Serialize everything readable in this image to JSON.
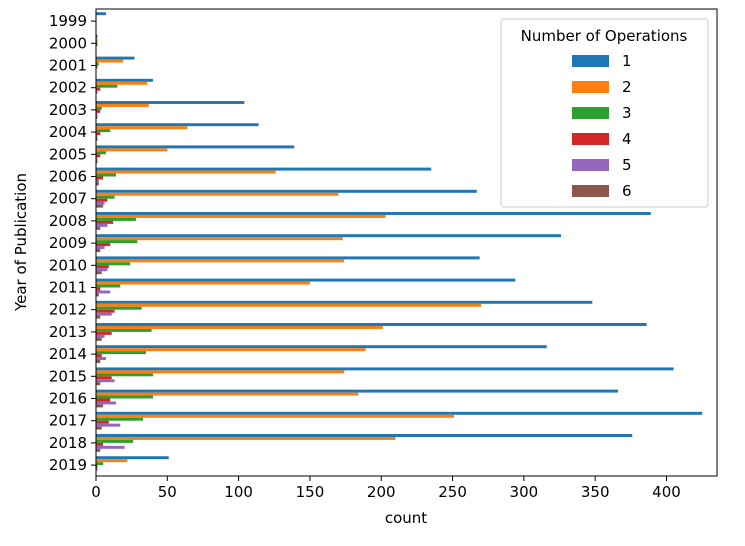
{
  "chart_data": {
    "type": "bar",
    "orientation": "horizontal",
    "title": "",
    "xlabel": "count",
    "ylabel": "Year of Publication",
    "xlim": [
      0,
      450
    ],
    "x_ticks": [
      "0",
      "50",
      "100",
      "150",
      "200",
      "250",
      "300",
      "350",
      "400"
    ],
    "x_tick_values": [
      0,
      50,
      100,
      150,
      200,
      250,
      300,
      350,
      400
    ],
    "grid": false,
    "categories": [
      "1999",
      "2000",
      "2001",
      "2002",
      "2003",
      "2004",
      "2005",
      "2006",
      "2007",
      "2008",
      "2009",
      "2010",
      "2011",
      "2012",
      "2013",
      "2014",
      "2015",
      "2016",
      "2017",
      "2018",
      "2019"
    ],
    "legend": {
      "title": "Number of Operations",
      "placement": "upper right"
    },
    "series": [
      {
        "name": "1",
        "color": "#1f77b4",
        "values": [
          7,
          1,
          27,
          40,
          104,
          114,
          139,
          235,
          267,
          389,
          326,
          269,
          294,
          348,
          386,
          316,
          405,
          366,
          425,
          376,
          51
        ]
      },
      {
        "name": "2",
        "color": "#ff7f0e",
        "values": [
          0,
          1,
          19,
          36,
          37,
          64,
          50,
          126,
          170,
          203,
          173,
          174,
          150,
          270,
          201,
          189,
          174,
          184,
          251,
          210,
          22
        ]
      },
      {
        "name": "3",
        "color": "#2ca02c",
        "values": [
          0,
          1,
          2,
          15,
          4,
          10,
          7,
          14,
          13,
          28,
          29,
          24,
          17,
          32,
          39,
          35,
          40,
          40,
          33,
          26,
          5
        ]
      },
      {
        "name": "4",
        "color": "#d62728",
        "values": [
          0,
          1,
          1,
          3,
          3,
          3,
          3,
          5,
          8,
          12,
          10,
          9,
          3,
          13,
          11,
          4,
          11,
          10,
          9,
          5,
          1
        ]
      },
      {
        "name": "5",
        "color": "#9467bd",
        "values": [
          0,
          0,
          0,
          1,
          1,
          1,
          1,
          2,
          6,
          8,
          6,
          8,
          10,
          11,
          6,
          7,
          13,
          14,
          17,
          20,
          1
        ]
      },
      {
        "name": "6",
        "color": "#8c564b",
        "values": [
          0,
          0,
          0,
          0,
          1,
          1,
          1,
          2,
          5,
          3,
          3,
          4,
          2,
          3,
          4,
          3,
          3,
          5,
          4,
          3,
          0
        ]
      }
    ]
  }
}
